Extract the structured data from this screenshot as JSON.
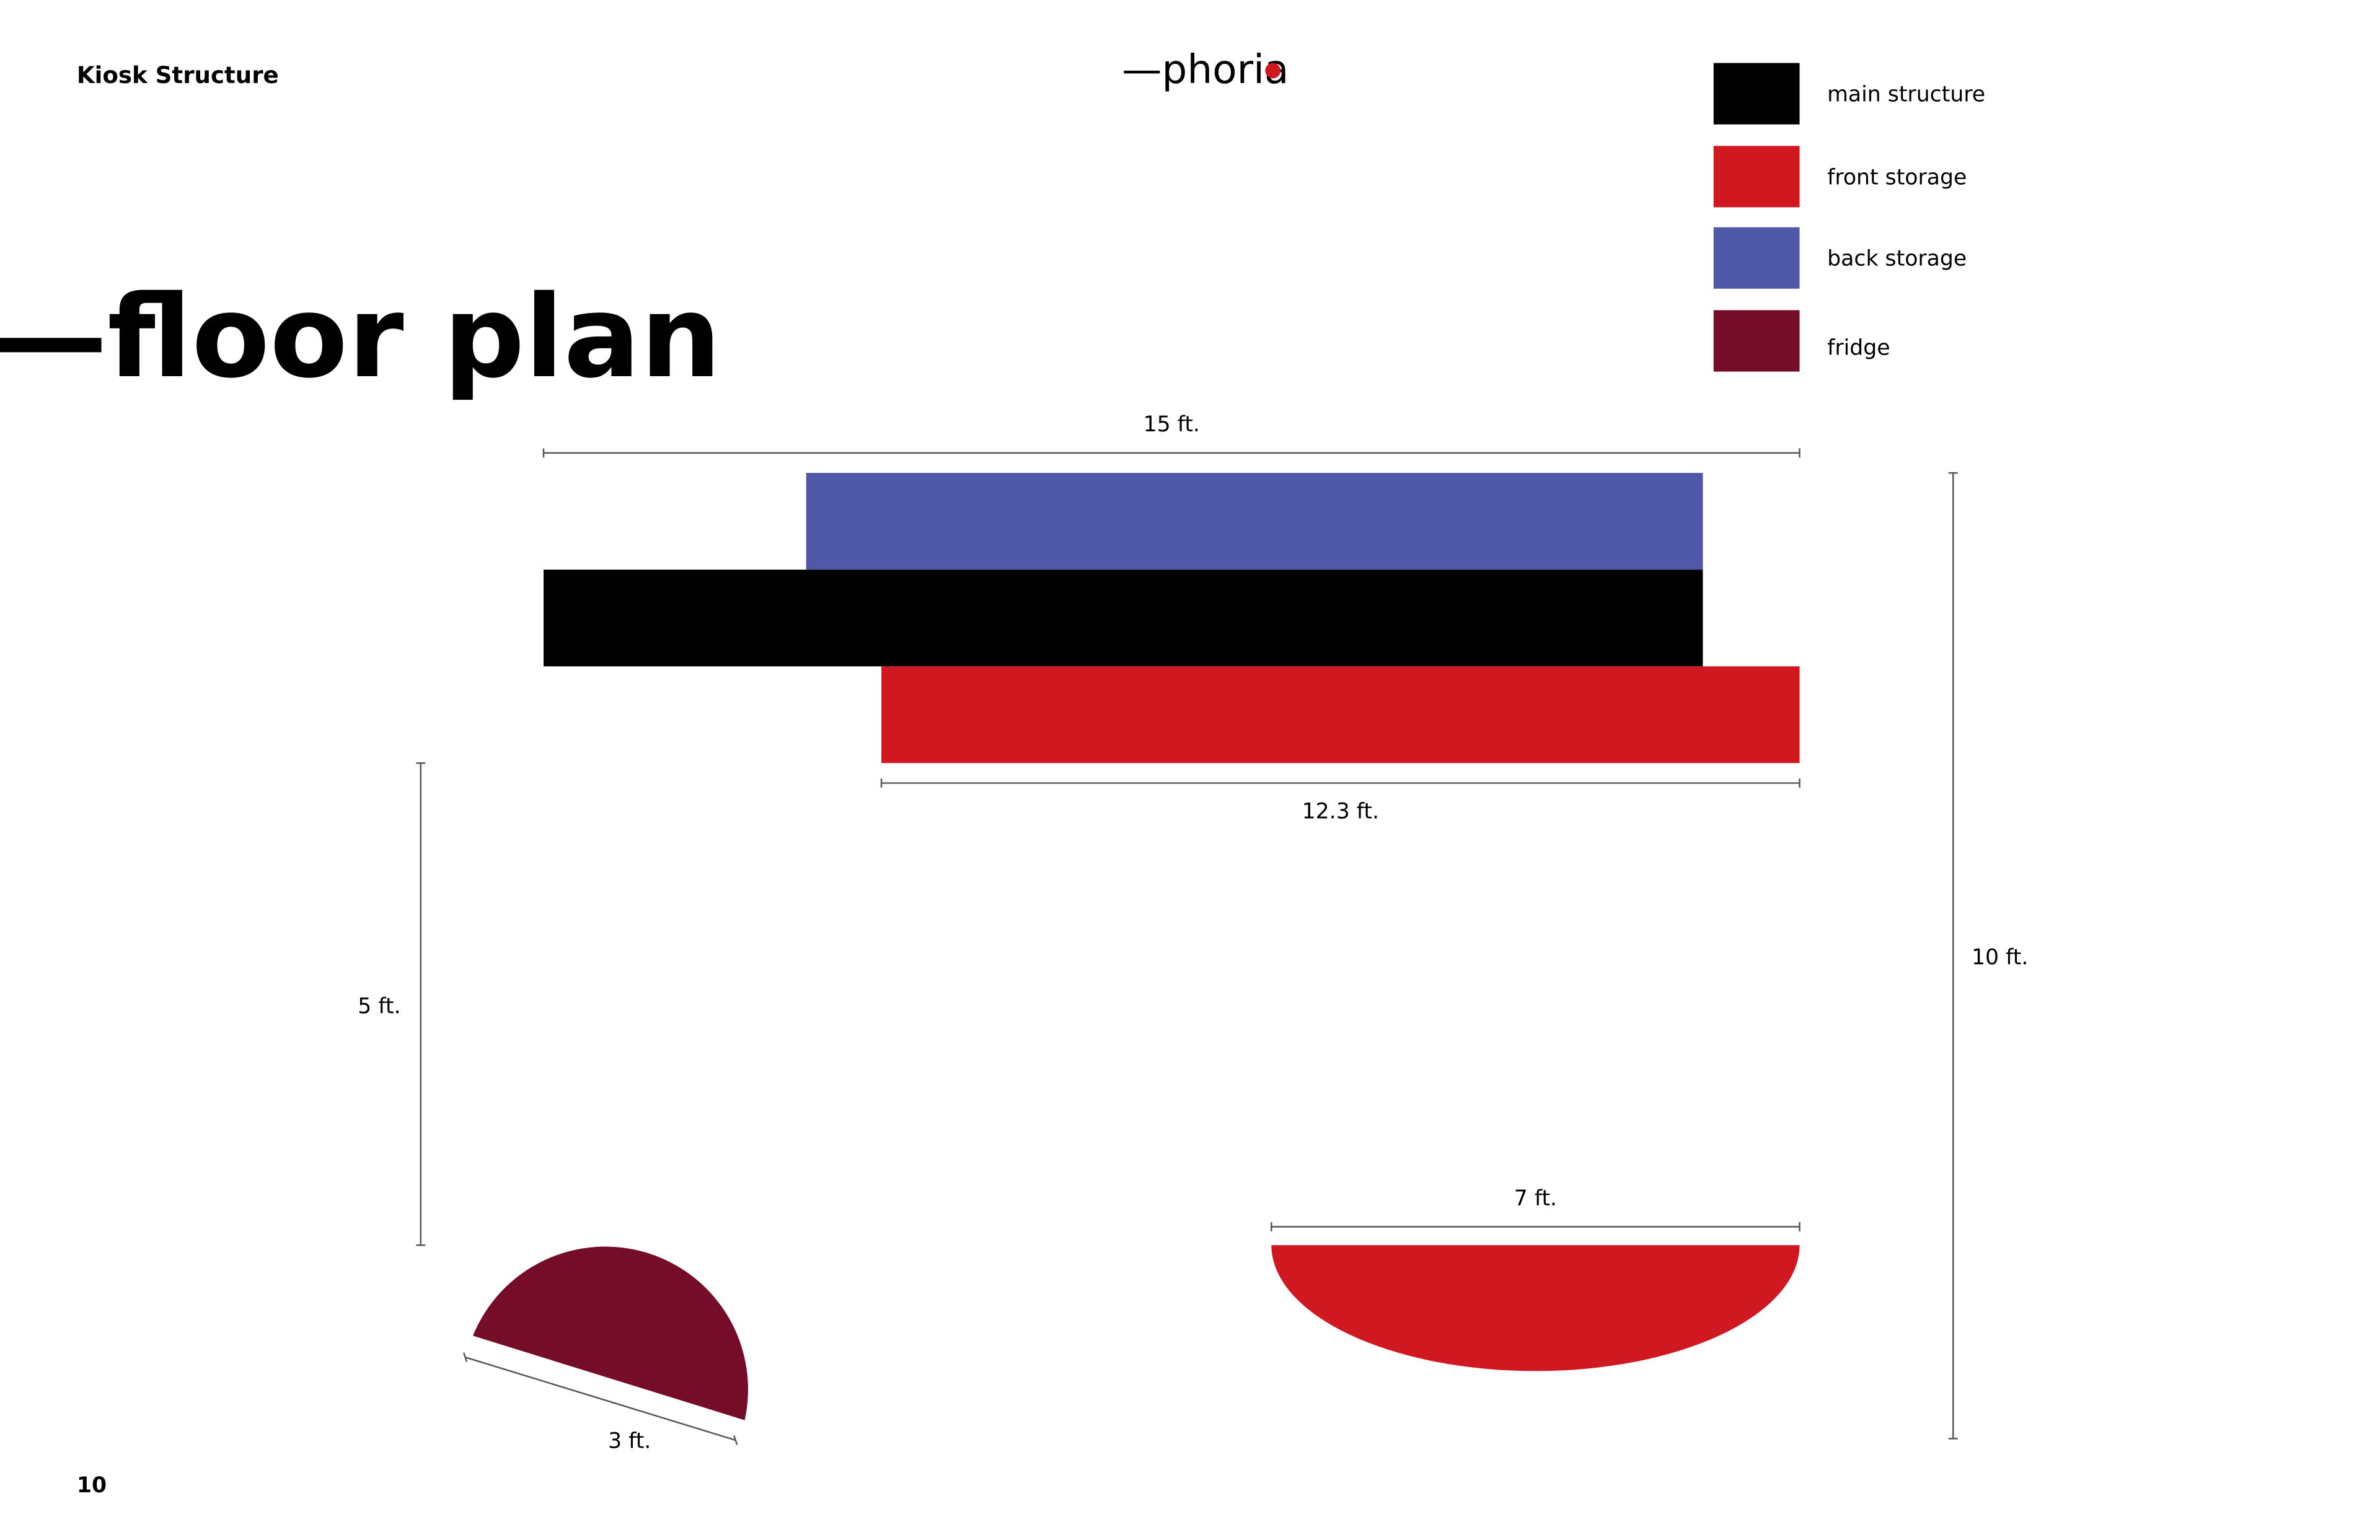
{
  "header": {
    "section": "Kiosk Structure",
    "logo": "—phoria",
    "title": "—floor plan",
    "page_number": "10"
  },
  "legend": [
    {
      "label": "main structure",
      "color": "#000000"
    },
    {
      "label": "front storage",
      "color": "#d01820"
    },
    {
      "label": "back storage",
      "color": "#5059a8"
    },
    {
      "label": "fridge",
      "color": "#750c28"
    }
  ],
  "dimensions": {
    "top_width": "15 ft.",
    "front_width": "12.3 ft.",
    "depth": "10 ft.",
    "fridge_height": "5 ft.",
    "counter_width": "7 ft.",
    "fridge_width": "3 ft."
  }
}
